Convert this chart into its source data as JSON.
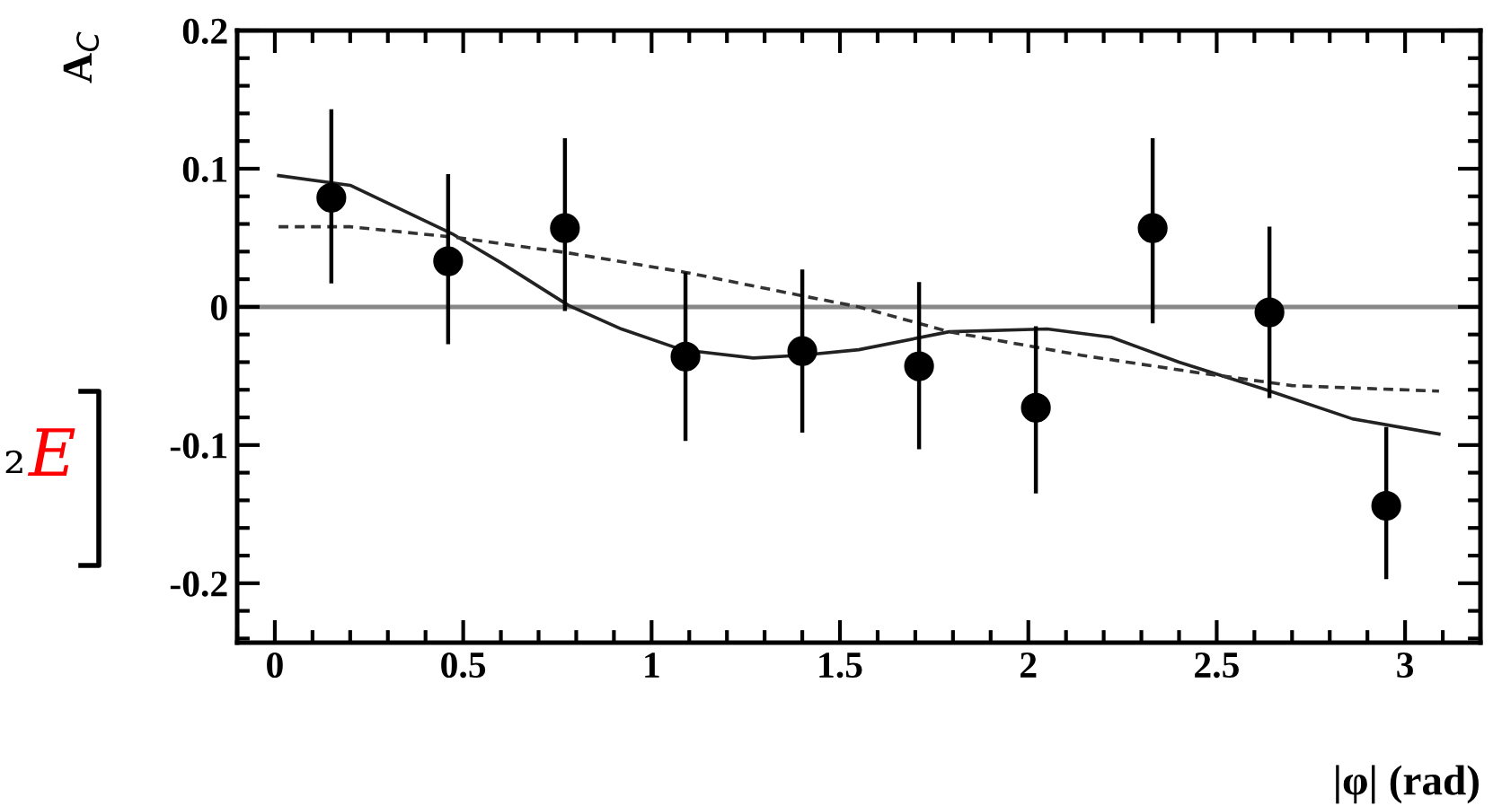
{
  "chart_data": {
    "type": "scatter",
    "xlabel": "|φ| (rad)",
    "ylabel": "A$_{C}$",
    "xlim": [
      -0.1,
      3.2
    ],
    "ylim": [
      -0.243,
      0.2
    ],
    "xticks": [
      0,
      0.5,
      1,
      1.5,
      2,
      2.5,
      3
    ],
    "yticks": [
      -0.2,
      -0.1,
      0,
      0.1,
      0.2
    ],
    "grid": false,
    "legend": false,
    "ref_lines": [
      {
        "axis": "y",
        "value": 0,
        "color": "#888888",
        "line_style": "solid"
      }
    ],
    "annotations": [
      "₂",
      "E"
    ],
    "series": [
      {
        "color": "#000000",
        "marker": "circle",
        "x": [
          0.15,
          0.46,
          0.77,
          1.09,
          1.4,
          1.71,
          2.02,
          2.33,
          2.64,
          2.95
        ],
        "values": [
          0.079,
          0.033,
          0.057,
          -0.036,
          -0.032,
          -0.043,
          -0.073,
          0.057,
          -0.004,
          -0.144
        ],
        "errors": [
          [
            0.017,
            0.143
          ],
          [
            -0.027,
            0.096
          ],
          [
            -0.003,
            0.122
          ],
          [
            -0.097,
            0.025
          ],
          [
            -0.091,
            0.027
          ],
          [
            -0.103,
            0.018
          ],
          [
            -0.135,
            -0.014
          ],
          [
            -0.012,
            0.122
          ],
          [
            -0.066,
            0.058
          ],
          [
            -0.197,
            -0.087
          ]
        ]
      },
      {
        "type": "line",
        "color": "#222222",
        "line_style": "solid",
        "x": [
          0.01,
          0.2,
          0.47,
          0.6,
          0.78,
          0.92,
          1.08,
          1.27,
          1.4,
          1.55,
          1.79,
          2.05,
          2.22,
          2.4,
          2.62,
          2.86,
          3.09
        ],
        "values": [
          0.095,
          0.088,
          0.053,
          0.032,
          0.001,
          -0.016,
          -0.031,
          -0.037,
          -0.035,
          -0.031,
          -0.018,
          -0.016,
          -0.022,
          -0.04,
          -0.059,
          -0.081,
          -0.092
        ]
      },
      {
        "type": "line",
        "color": "#333333",
        "line_style": "dashed",
        "x": [
          0.01,
          0.2,
          0.49,
          0.78,
          1.09,
          1.4,
          1.55,
          1.79,
          2.14,
          2.46,
          2.7,
          3.09
        ],
        "values": [
          0.058,
          0.058,
          0.05,
          0.039,
          0.025,
          0.008,
          0.0,
          -0.018,
          -0.035,
          -0.048,
          -0.057,
          -0.061
        ]
      }
    ]
  }
}
